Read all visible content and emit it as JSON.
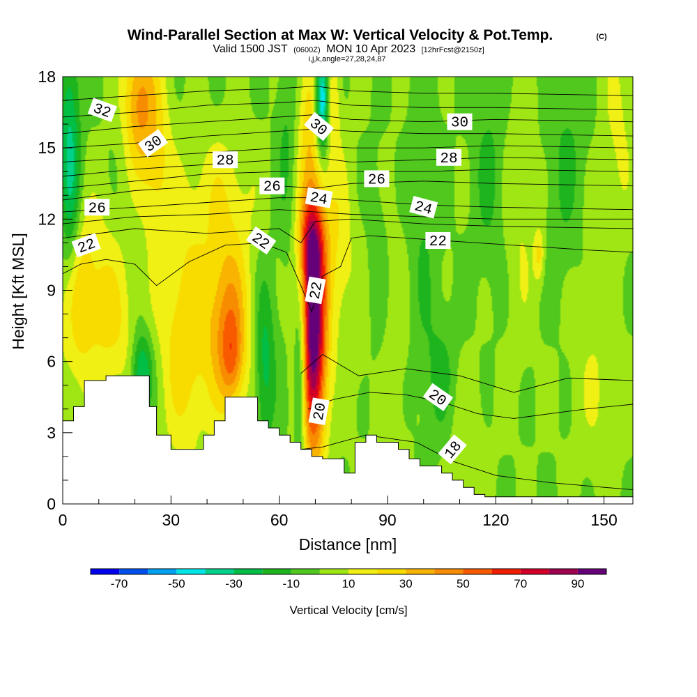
{
  "chart_data": {
    "type": "heatmap",
    "title": "Wind-Parallel Section at Max W: Vertical Velocity & Pot.Temp.",
    "title_unit": "(C)",
    "subtitle_main": "Valid 1500 JST",
    "subtitle_utc": "(0600Z)",
    "subtitle_date": "MON 10 Apr 2023",
    "subtitle_fcst": "[12hrFcst@2150z]",
    "subtitle_indices": "i,j,k,angle=27,28,24,87",
    "xlabel": "Distance [nm]",
    "ylabel": "Height [Kft MSL]",
    "colorbar_label": "Vertical Velocity [cm/s]",
    "xlim": [
      0,
      158
    ],
    "ylim": [
      0,
      18
    ],
    "x_ticks": [
      0,
      30,
      60,
      90,
      120,
      150
    ],
    "x_tick_labels": [
      "0",
      "30",
      "60",
      "90",
      "120",
      "150"
    ],
    "y_ticks": [
      0,
      3,
      6,
      9,
      12,
      15,
      18
    ],
    "y_tick_labels": [
      "0",
      "3",
      "6",
      "9",
      "12",
      "15",
      "18"
    ],
    "colorbar_levels": [
      -80,
      -70,
      -60,
      -50,
      -40,
      -30,
      -20,
      -10,
      0,
      10,
      20,
      30,
      40,
      50,
      60,
      70,
      80,
      90,
      100
    ],
    "colorbar_tick_values": [
      -70,
      -50,
      -30,
      -10,
      10,
      30,
      50,
      70,
      90
    ],
    "colorbar_tick_labels": [
      "-70",
      "-50",
      "-30",
      "-10",
      "10",
      "30",
      "50",
      "70",
      "90"
    ],
    "colorbar_colors": [
      "#0000f0",
      "#0050f0",
      "#00a0f0",
      "#00e6e6",
      "#00d28c",
      "#00be46",
      "#1eb41e",
      "#50c81e",
      "#a0e614",
      "#f0f014",
      "#f8dc00",
      "#f8b400",
      "#f88c00",
      "#f85a00",
      "#f01e00",
      "#d20028",
      "#a00050",
      "#640078"
    ],
    "background_velocity_cm_s": 0,
    "velocity_features": [
      {
        "x": 2,
        "y": 14,
        "sx": 2,
        "sy": 4,
        "w": -35
      },
      {
        "x": 3,
        "y": 8,
        "sx": 3,
        "sy": 3,
        "w": 15
      },
      {
        "x": 8,
        "y": 9,
        "sx": 6,
        "sy": 2.5,
        "w": 22
      },
      {
        "x": 15,
        "y": 7,
        "sx": 4,
        "sy": 2,
        "w": 12
      },
      {
        "x": 22,
        "y": 5.5,
        "sx": 2,
        "sy": 1.2,
        "w": -35
      },
      {
        "x": 21,
        "y": 17,
        "sx": 3,
        "sy": 2,
        "w": 40
      },
      {
        "x": 26,
        "y": 14.5,
        "sx": 3,
        "sy": 3,
        "w": 22
      },
      {
        "x": 34,
        "y": 7,
        "sx": 5,
        "sy": 3.5,
        "w": 28
      },
      {
        "x": 46,
        "y": 7.5,
        "sx": 4,
        "sy": 2.5,
        "w": 45
      },
      {
        "x": 47,
        "y": 6,
        "sx": 2,
        "sy": 1.2,
        "w": 20
      },
      {
        "x": 44,
        "y": 13,
        "sx": 7,
        "sy": 2,
        "w": 15
      },
      {
        "x": 56,
        "y": 6,
        "sx": 2,
        "sy": 2.5,
        "w": -25
      },
      {
        "x": 62,
        "y": 15,
        "sx": 2,
        "sy": 3,
        "w": -12
      },
      {
        "x": 66,
        "y": 5.5,
        "sx": 1.2,
        "sy": 2.5,
        "w": -35
      },
      {
        "x": 69.5,
        "y": 7,
        "sx": 2.5,
        "sy": 3.5,
        "w": 100
      },
      {
        "x": 69,
        "y": 11,
        "sx": 2.5,
        "sy": 1.5,
        "w": 45
      },
      {
        "x": 68.5,
        "y": 16,
        "sx": 2.5,
        "sy": 2.5,
        "w": 25
      },
      {
        "x": 72,
        "y": 17,
        "sx": 1.4,
        "sy": 1.5,
        "w": -65
      },
      {
        "x": 74.5,
        "y": 17,
        "sx": 1.5,
        "sy": 1.5,
        "w": 25
      },
      {
        "x": 76,
        "y": 11,
        "sx": 3,
        "sy": 3,
        "w": 18
      },
      {
        "x": 82,
        "y": 7.5,
        "sx": 3,
        "sy": 3,
        "w": 5
      },
      {
        "x": 87,
        "y": 10,
        "sx": 2,
        "sy": 3,
        "w": -8
      },
      {
        "x": 92,
        "y": 6,
        "sx": 3,
        "sy": 5,
        "w": 6
      },
      {
        "x": 100,
        "y": 12,
        "sx": 3,
        "sy": 5,
        "w": -10
      },
      {
        "x": 105,
        "y": 5,
        "sx": 3,
        "sy": 2,
        "w": -15
      },
      {
        "x": 110,
        "y": 3,
        "sx": 5,
        "sy": 2,
        "w": 8
      },
      {
        "x": 118,
        "y": 14,
        "sx": 3,
        "sy": 3,
        "w": -12
      },
      {
        "x": 127,
        "y": 12,
        "sx": 3,
        "sy": 4,
        "w": 10
      },
      {
        "x": 132,
        "y": 10.5,
        "sx": 1,
        "sy": 0.8,
        "w": 22
      },
      {
        "x": 140,
        "y": 14,
        "sx": 4,
        "sy": 4,
        "w": -12
      },
      {
        "x": 146,
        "y": 8,
        "sx": 5,
        "sy": 4,
        "w": 8
      },
      {
        "x": 154,
        "y": 16,
        "sx": 3,
        "sy": 3,
        "w": 12
      },
      {
        "x": 150,
        "y": 4,
        "sx": 4,
        "sy": 2,
        "w": 6
      }
    ],
    "terrain_x": [
      0,
      3,
      3,
      6,
      6,
      12,
      12,
      24,
      24,
      26,
      26,
      30,
      30,
      39,
      39,
      42,
      42,
      45,
      45,
      51,
      51,
      54,
      54,
      57,
      57,
      60,
      60,
      63,
      63,
      66,
      66,
      69,
      69,
      72,
      72,
      78,
      78,
      81,
      81,
      84,
      84,
      87,
      87,
      93,
      93,
      96,
      96,
      99,
      99,
      105,
      105,
      108,
      108,
      111,
      111,
      114,
      114,
      117,
      117,
      120,
      120,
      158
    ],
    "terrain_y": [
      3.5,
      3.5,
      4.1,
      4.1,
      5.2,
      5.2,
      5.4,
      5.4,
      4.1,
      4.1,
      2.9,
      2.9,
      2.3,
      2.3,
      2.9,
      2.9,
      3.5,
      3.5,
      4.5,
      4.5,
      4.5,
      4.5,
      3.5,
      3.5,
      3.2,
      3.2,
      2.9,
      2.9,
      2.6,
      2.6,
      2.3,
      2.3,
      2.0,
      2.0,
      1.9,
      1.9,
      1.3,
      1.3,
      2.6,
      2.6,
      2.9,
      2.9,
      2.6,
      2.6,
      2.3,
      2.3,
      1.9,
      1.9,
      1.6,
      1.6,
      1.3,
      1.3,
      1.0,
      1.0,
      0.7,
      0.7,
      0.4,
      0.4,
      0.3,
      0.3,
      0.3,
      0.3
    ],
    "theta_contours": [
      {
        "level": 18,
        "x": [
          60,
          72,
          84,
          98,
          108,
          120,
          135,
          150,
          158
        ],
        "y": [
          2.2,
          2.4,
          2.9,
          2.6,
          1.8,
          1.2,
          0.9,
          0.7,
          0.6
        ]
      },
      {
        "level": 20,
        "x": [
          68,
          75,
          85,
          95,
          105,
          115,
          125,
          135,
          145,
          158
        ],
        "y": [
          4.0,
          4.4,
          4.7,
          4.6,
          4.3,
          3.8,
          3.6,
          3.8,
          4.0,
          4.2
        ]
      },
      {
        "level": 21,
        "x": [
          66,
          72,
          82,
          95,
          110,
          125,
          140,
          158
        ],
        "y": [
          5.5,
          6.3,
          5.4,
          5.7,
          5.4,
          4.7,
          5.3,
          5.2
        ]
      },
      {
        "level": 22,
        "x": [
          0,
          5,
          12,
          20,
          26,
          35,
          45,
          55,
          62,
          66,
          69,
          72,
          77,
          80,
          85,
          95,
          105,
          115,
          125,
          135,
          145,
          158
        ],
        "y": [
          9.7,
          10.1,
          10.3,
          10.1,
          9.2,
          10.2,
          10.9,
          11.0,
          10.6,
          9.2,
          8.1,
          9.6,
          10.0,
          11.2,
          11.3,
          11.2,
          11.1,
          11.0,
          10.9,
          10.8,
          10.7,
          10.6
        ]
      },
      {
        "level": 23,
        "x": [
          0,
          20,
          40,
          60,
          66,
          70,
          80,
          100,
          120,
          158
        ],
        "y": [
          11.2,
          11.6,
          11.4,
          11.6,
          11.0,
          11.9,
          12.0,
          11.8,
          11.7,
          11.6
        ]
      },
      {
        "level": 24,
        "x": [
          0,
          20,
          40,
          60,
          70,
          80,
          100,
          120,
          158
        ],
        "y": [
          11.8,
          12.1,
          12.2,
          12.4,
          12.3,
          12.2,
          12.1,
          12.0,
          12.0
        ]
      },
      {
        "level": 25,
        "x": [
          0,
          20,
          40,
          60,
          70,
          80,
          100,
          120,
          158
        ],
        "y": [
          12.3,
          12.5,
          12.7,
          12.9,
          12.9,
          12.8,
          12.6,
          12.5,
          12.4
        ]
      },
      {
        "level": 26,
        "x": [
          0,
          20,
          40,
          60,
          70,
          80,
          100,
          120,
          158
        ],
        "y": [
          12.8,
          13.2,
          13.4,
          13.4,
          13.3,
          13.5,
          13.6,
          13.5,
          13.4
        ]
      },
      {
        "level": 27,
        "x": [
          0,
          20,
          40,
          60,
          70,
          80,
          100,
          120,
          158
        ],
        "y": [
          13.3,
          13.6,
          13.9,
          14.0,
          14.0,
          14.0,
          14.0,
          14.1,
          14.0
        ]
      },
      {
        "level": 28,
        "x": [
          0,
          20,
          40,
          60,
          70,
          80,
          100,
          120,
          158
        ],
        "y": [
          13.8,
          14.1,
          14.3,
          14.5,
          14.6,
          14.4,
          14.5,
          14.6,
          14.5
        ]
      },
      {
        "level": 29,
        "x": [
          0,
          20,
          40,
          60,
          70,
          80,
          100,
          120,
          158
        ],
        "y": [
          14.4,
          14.6,
          14.8,
          15.0,
          15.1,
          15.0,
          15.0,
          15.1,
          15.0
        ]
      },
      {
        "level": 30,
        "x": [
          0,
          20,
          40,
          60,
          70,
          80,
          100,
          120,
          158
        ],
        "y": [
          15.0,
          15.2,
          15.5,
          15.7,
          15.8,
          15.7,
          15.6,
          15.6,
          15.5
        ]
      },
      {
        "level": 31,
        "x": [
          0,
          20,
          40,
          60,
          70,
          80,
          100,
          120,
          158
        ],
        "y": [
          15.6,
          15.9,
          16.1,
          16.3,
          16.4,
          16.2,
          16.1,
          16.2,
          16.1
        ]
      },
      {
        "level": 32,
        "x": [
          0,
          20,
          40,
          60,
          70,
          80,
          100,
          120,
          158
        ],
        "y": [
          16.3,
          16.5,
          16.8,
          16.9,
          17.0,
          16.8,
          16.7,
          16.7,
          16.6
        ]
      },
      {
        "level": 33,
        "x": [
          0,
          20,
          40,
          60,
          70,
          80,
          100,
          120,
          158
        ],
        "y": [
          17.0,
          17.2,
          17.4,
          17.5,
          17.6,
          17.4,
          17.3,
          17.3,
          17.2
        ]
      }
    ],
    "contour_labels": [
      {
        "text": "32",
        "x": 11,
        "y": 16.6,
        "angle": 20
      },
      {
        "text": "30",
        "x": 25,
        "y": 15.2,
        "angle": -35
      },
      {
        "text": "28",
        "x": 45,
        "y": 14.5,
        "angle": 0
      },
      {
        "text": "26",
        "x": 58,
        "y": 13.4,
        "angle": 0
      },
      {
        "text": "26",
        "x": 9.5,
        "y": 12.5,
        "angle": 0
      },
      {
        "text": "22",
        "x": 6.5,
        "y": 10.9,
        "angle": -20
      },
      {
        "text": "22",
        "x": 55,
        "y": 11.1,
        "angle": 35
      },
      {
        "text": "24",
        "x": 71,
        "y": 12.9,
        "angle": 10
      },
      {
        "text": "30",
        "x": 71,
        "y": 15.9,
        "angle": 40
      },
      {
        "text": "26",
        "x": 87,
        "y": 13.7,
        "angle": 0
      },
      {
        "text": "30",
        "x": 110,
        "y": 16.1,
        "angle": 0
      },
      {
        "text": "28",
        "x": 107,
        "y": 14.6,
        "angle": 0
      },
      {
        "text": "24",
        "x": 100,
        "y": 12.5,
        "angle": 15
      },
      {
        "text": "22",
        "x": 104,
        "y": 11.1,
        "angle": 0
      },
      {
        "text": "22",
        "x": 70,
        "y": 9.0,
        "angle": -80
      },
      {
        "text": "20",
        "x": 71,
        "y": 3.9,
        "angle": -80
      },
      {
        "text": "20",
        "x": 104,
        "y": 4.5,
        "angle": 35
      },
      {
        "text": "18",
        "x": 108,
        "y": 2.3,
        "angle": -50
      }
    ]
  }
}
